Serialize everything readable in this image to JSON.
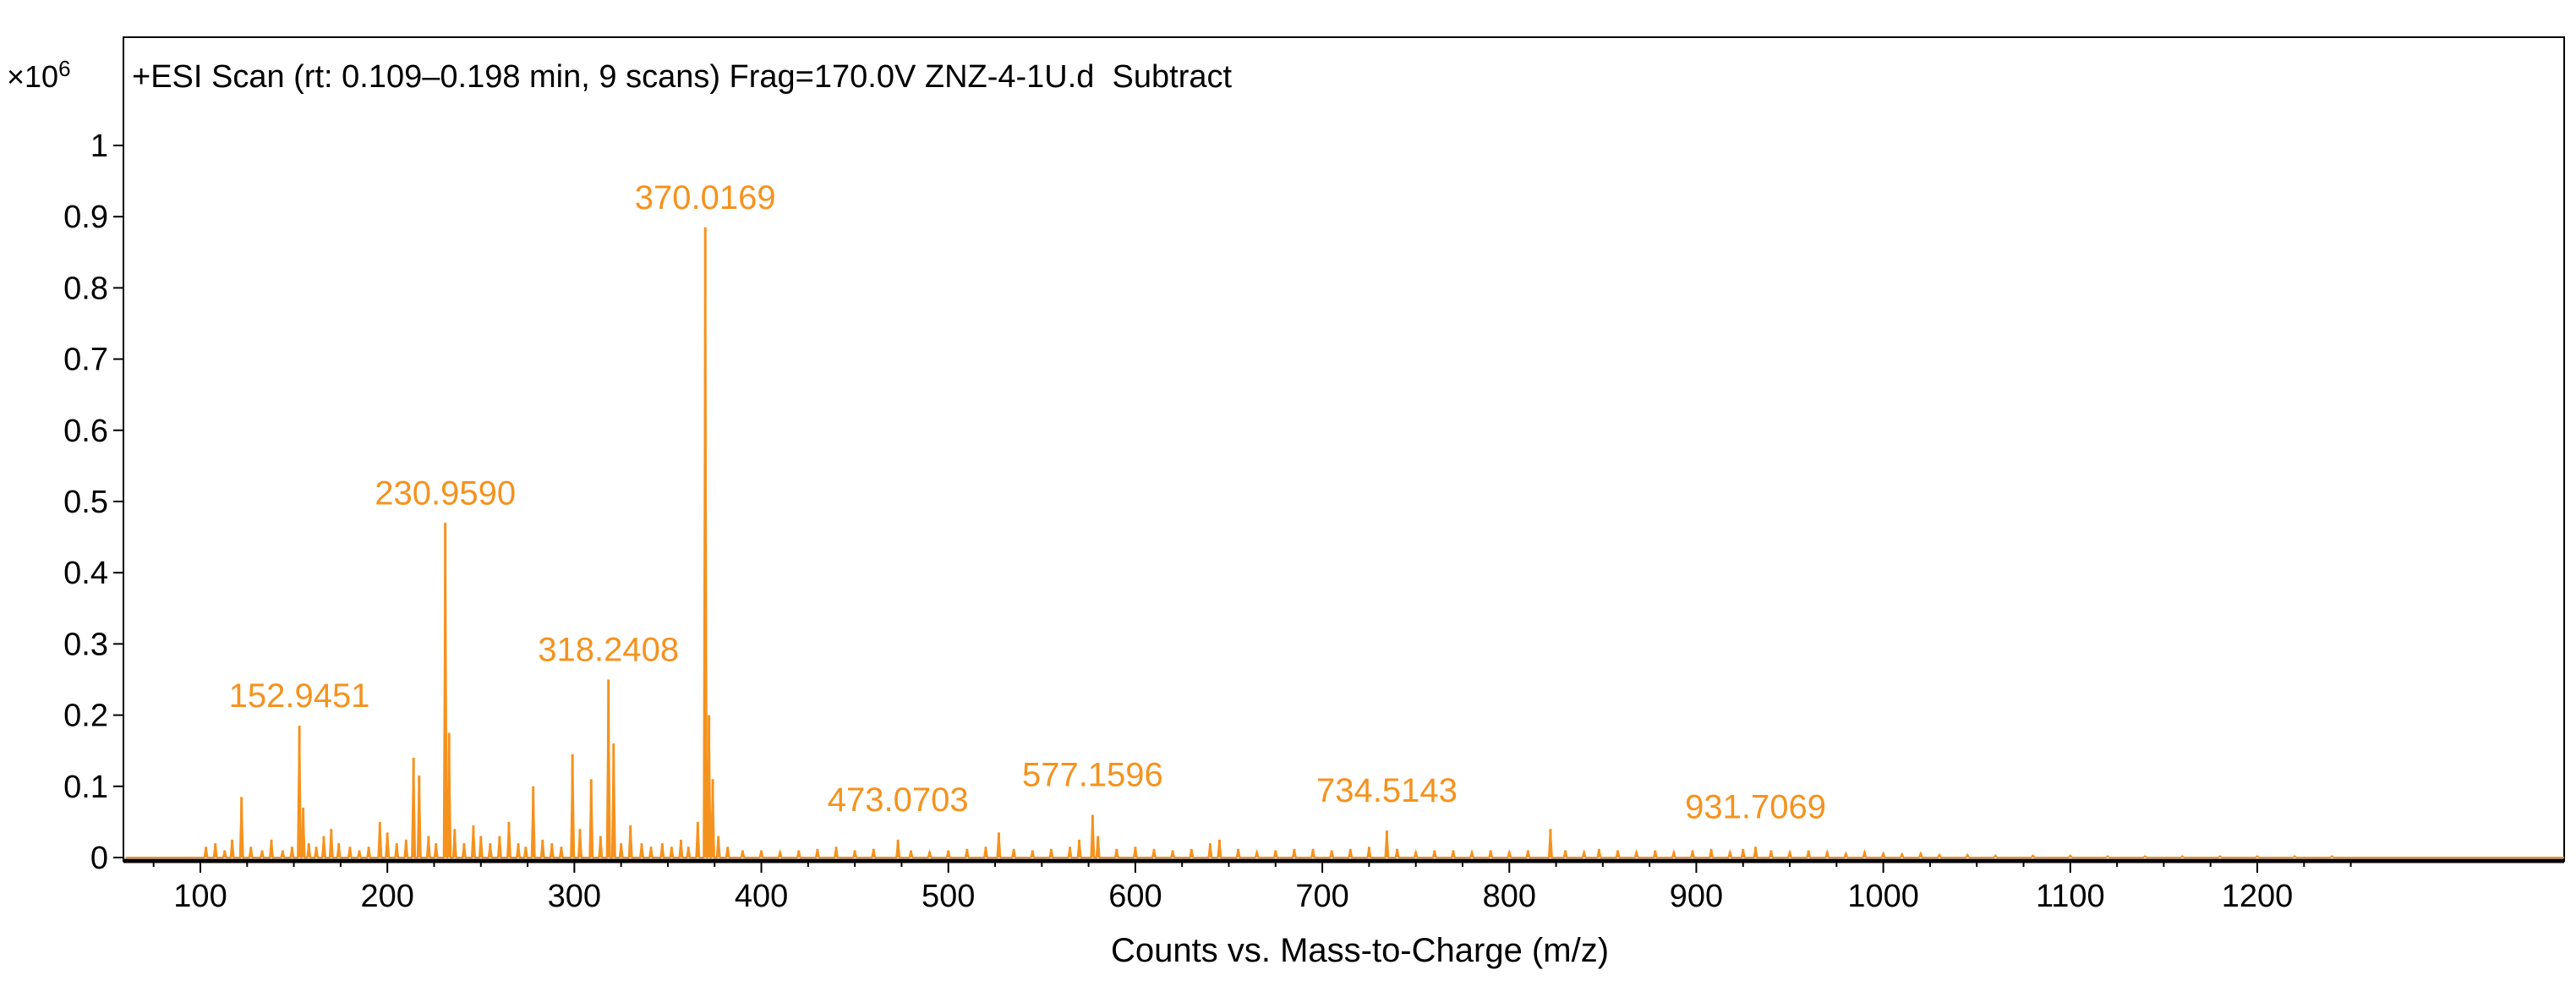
{
  "scale": {
    "prefix": "×10",
    "exponent": "6"
  },
  "colors": {
    "series": "#f5921e",
    "axis": "#000000"
  },
  "chart_data": {
    "type": "line",
    "title": "+ESI Scan (rt: 0.109–0.198 min, 9 scans) Frag=170.0V ZNZ-4-1U.d  Subtract",
    "xlabel": "Counts vs. Mass-to-Charge (m/z)",
    "ylabel": "",
    "y_scale_factor": "×10^6",
    "xlim": [
      60,
      1250
    ],
    "ylim": [
      0,
      1.05
    ],
    "x_ticks": [
      100,
      200,
      300,
      400,
      500,
      600,
      700,
      800,
      900,
      1000,
      1100,
      1200
    ],
    "x_tick_labels": [
      "100",
      "200",
      "300",
      "400",
      "500",
      "600",
      "700",
      "800",
      "900",
      "1000",
      "1100",
      "1200"
    ],
    "y_ticks": [
      0,
      0.1,
      0.2,
      0.3,
      0.4,
      0.5,
      0.6,
      0.7,
      0.8,
      0.9,
      1
    ],
    "y_tick_labels": [
      "0",
      "0.1",
      "0.2",
      "0.3",
      "0.4",
      "0.5",
      "0.6",
      "0.7",
      "0.8",
      "0.9",
      "1"
    ],
    "grid": false,
    "series": [
      {
        "peaks": [
          [
            103,
            0.015
          ],
          [
            108,
            0.02
          ],
          [
            113,
            0.01
          ],
          [
            117,
            0.025
          ],
          [
            122,
            0.085
          ],
          [
            127,
            0.015
          ],
          [
            133,
            0.01
          ],
          [
            138,
            0.025
          ],
          [
            144,
            0.01
          ],
          [
            149,
            0.015
          ],
          [
            152.9451,
            0.185
          ],
          [
            155,
            0.07
          ],
          [
            158,
            0.02
          ],
          [
            162,
            0.015
          ],
          [
            166,
            0.03
          ],
          [
            170,
            0.04
          ],
          [
            174,
            0.02
          ],
          [
            180,
            0.015
          ],
          [
            185,
            0.01
          ],
          [
            190,
            0.015
          ],
          [
            196,
            0.05
          ],
          [
            200,
            0.035
          ],
          [
            205,
            0.02
          ],
          [
            210,
            0.025
          ],
          [
            214,
            0.14
          ],
          [
            217,
            0.115
          ],
          [
            222,
            0.03
          ],
          [
            226,
            0.02
          ],
          [
            230.959,
            0.47
          ],
          [
            233,
            0.175
          ],
          [
            236,
            0.04
          ],
          [
            241,
            0.02
          ],
          [
            246,
            0.045
          ],
          [
            250,
            0.03
          ],
          [
            255,
            0.02
          ],
          [
            260,
            0.03
          ],
          [
            265,
            0.05
          ],
          [
            270,
            0.02
          ],
          [
            274,
            0.015
          ],
          [
            278,
            0.1
          ],
          [
            283,
            0.025
          ],
          [
            288,
            0.02
          ],
          [
            293,
            0.015
          ],
          [
            299,
            0.145
          ],
          [
            303,
            0.04
          ],
          [
            309,
            0.11
          ],
          [
            314,
            0.03
          ],
          [
            318.2408,
            0.25
          ],
          [
            321,
            0.16
          ],
          [
            325,
            0.02
          ],
          [
            330,
            0.045
          ],
          [
            336,
            0.02
          ],
          [
            341,
            0.015
          ],
          [
            347,
            0.02
          ],
          [
            352,
            0.015
          ],
          [
            357,
            0.025
          ],
          [
            361,
            0.015
          ],
          [
            366,
            0.05
          ],
          [
            370.0169,
            0.885
          ],
          [
            372,
            0.2
          ],
          [
            374,
            0.11
          ],
          [
            377,
            0.03
          ],
          [
            382,
            0.015
          ],
          [
            390,
            0.01
          ],
          [
            400,
            0.01
          ],
          [
            410,
            0.008
          ],
          [
            420,
            0.01
          ],
          [
            430,
            0.012
          ],
          [
            440,
            0.015
          ],
          [
            450,
            0.01
          ],
          [
            460,
            0.012
          ],
          [
            473.0703,
            0.025
          ],
          [
            480,
            0.01
          ],
          [
            490,
            0.008
          ],
          [
            500,
            0.01
          ],
          [
            510,
            0.012
          ],
          [
            520,
            0.015
          ],
          [
            527,
            0.035
          ],
          [
            535,
            0.012
          ],
          [
            545,
            0.01
          ],
          [
            555,
            0.012
          ],
          [
            565,
            0.015
          ],
          [
            570,
            0.025
          ],
          [
            577.1596,
            0.06
          ],
          [
            580,
            0.03
          ],
          [
            590,
            0.012
          ],
          [
            600,
            0.015
          ],
          [
            610,
            0.012
          ],
          [
            620,
            0.01
          ],
          [
            630,
            0.012
          ],
          [
            640,
            0.02
          ],
          [
            645,
            0.025
          ],
          [
            655,
            0.012
          ],
          [
            665,
            0.008
          ],
          [
            675,
            0.01
          ],
          [
            685,
            0.012
          ],
          [
            695,
            0.012
          ],
          [
            705,
            0.01
          ],
          [
            715,
            0.012
          ],
          [
            725,
            0.015
          ],
          [
            734.5143,
            0.038
          ],
          [
            740,
            0.012
          ],
          [
            750,
            0.008
          ],
          [
            760,
            0.01
          ],
          [
            770,
            0.01
          ],
          [
            780,
            0.008
          ],
          [
            790,
            0.01
          ],
          [
            800,
            0.008
          ],
          [
            810,
            0.01
          ],
          [
            822,
            0.04
          ],
          [
            830,
            0.01
          ],
          [
            840,
            0.008
          ],
          [
            848,
            0.012
          ],
          [
            858,
            0.01
          ],
          [
            868,
            0.008
          ],
          [
            878,
            0.01
          ],
          [
            888,
            0.008
          ],
          [
            898,
            0.01
          ],
          [
            908,
            0.012
          ],
          [
            918,
            0.008
          ],
          [
            925,
            0.012
          ],
          [
            931.7069,
            0.015
          ],
          [
            940,
            0.01
          ],
          [
            950,
            0.008
          ],
          [
            960,
            0.01
          ],
          [
            970,
            0.008
          ],
          [
            980,
            0.006
          ],
          [
            990,
            0.008
          ],
          [
            1000,
            0.006
          ],
          [
            1010,
            0.005
          ],
          [
            1020,
            0.006
          ],
          [
            1030,
            0.004
          ],
          [
            1045,
            0.004
          ],
          [
            1060,
            0.003
          ],
          [
            1080,
            0.003
          ],
          [
            1100,
            0.003
          ],
          [
            1120,
            0.002
          ],
          [
            1140,
            0.002
          ],
          [
            1160,
            0.002
          ],
          [
            1180,
            0.002
          ],
          [
            1200,
            0.002
          ],
          [
            1220,
            0.002
          ],
          [
            1240,
            0.002
          ]
        ]
      }
    ],
    "annotations": [
      {
        "label": "152.9451",
        "x": 152.9451,
        "y": 0.185
      },
      {
        "label": "230.9590",
        "x": 230.959,
        "y": 0.47
      },
      {
        "label": "318.2408",
        "x": 318.2408,
        "y": 0.25
      },
      {
        "label": "370.0169",
        "x": 370.0169,
        "y": 0.885
      },
      {
        "label": "473.0703",
        "x": 473.0703,
        "y": 0.025
      },
      {
        "label": "577.1596",
        "x": 577.1596,
        "y": 0.06
      },
      {
        "label": "734.5143",
        "x": 734.5143,
        "y": 0.038
      },
      {
        "label": "931.7069",
        "x": 931.7069,
        "y": 0.015
      }
    ]
  }
}
